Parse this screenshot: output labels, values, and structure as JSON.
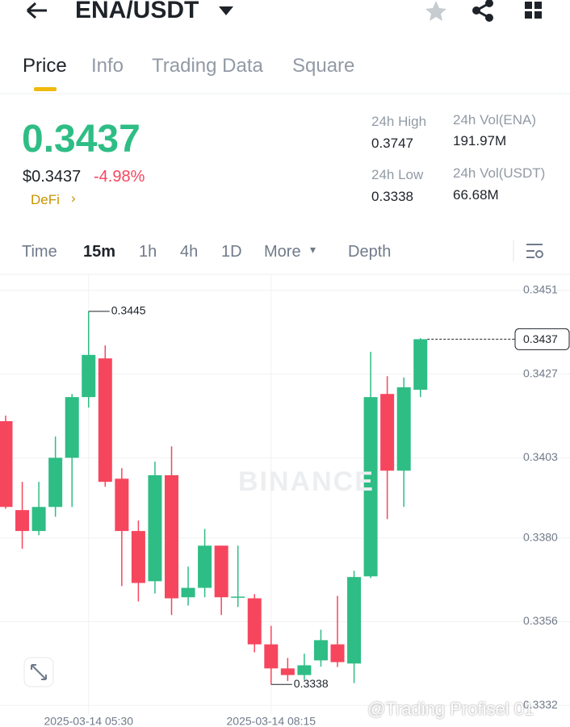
{
  "header": {
    "pair": "ENA/USDT",
    "tabs": [
      "Price",
      "Info",
      "Trading Data",
      "Square"
    ]
  },
  "summary": {
    "price": "0.3437",
    "fiat_price": "$0.3437",
    "change": "-4.98%",
    "tag": "DeFi",
    "stats": [
      {
        "label": "24h High",
        "value": "0.3747"
      },
      {
        "label": "24h Vol(ENA)",
        "value": "191.97M"
      },
      {
        "label": "24h Low",
        "value": "0.3338"
      },
      {
        "label": "24h Vol(USDT)",
        "value": "66.68M"
      }
    ]
  },
  "intervals": [
    "Time",
    "15m",
    "1h",
    "4h",
    "1D",
    "More",
    "Depth"
  ],
  "watermarks": [
    "BINANCE",
    "@Trading Profisel 01"
  ],
  "chart_data": {
    "type": "candlestick",
    "up_color": "#2ebd85",
    "down_color": "#f6465d",
    "categories": [
      null,
      null,
      null,
      null,
      null,
      "2025-03-14 05:30",
      null,
      null,
      null,
      null,
      null,
      null,
      null,
      null,
      null,
      null,
      "2025-03-14 08:15",
      null,
      null,
      null,
      null,
      null,
      null,
      null,
      null,
      null
    ],
    "open": [
      0.34135,
      0.3388,
      0.3382,
      0.33889,
      0.3403,
      0.34204,
      0.34315,
      0.3397,
      0.3382,
      0.33676,
      0.3398,
      0.3363,
      0.33657,
      0.33778,
      0.3363,
      0.33627,
      0.33495,
      0.33426,
      0.33407,
      0.33449,
      0.33495,
      0.3344,
      0.3369,
      0.34213,
      0.33993,
      0.34225
    ],
    "high": [
      0.34151,
      0.33961,
      0.33961,
      0.34091,
      0.34213,
      0.3445,
      0.34352,
      0.34,
      0.3385,
      0.34019,
      0.34063,
      0.33718,
      0.33826,
      0.33778,
      0.33778,
      0.33639,
      0.33548,
      0.33456,
      0.33468,
      0.33537,
      0.33634,
      0.33706,
      0.34334,
      0.34264,
      0.3426,
      0.34373
    ],
    "low": [
      0.33884,
      0.33769,
      0.33808,
      0.33861,
      0.33889,
      0.34174,
      0.33947,
      0.33662,
      0.33618,
      0.33641,
      0.33579,
      0.33606,
      0.3363,
      0.33579,
      0.33602,
      0.33472,
      0.3338,
      0.3339,
      0.33393,
      0.33431,
      0.3343,
      0.33384,
      0.33685,
      0.33854,
      0.33889,
      0.34204
    ],
    "close": [
      0.33889,
      0.3382,
      0.33889,
      0.3403,
      0.34204,
      0.34325,
      0.33961,
      0.3382,
      0.33671,
      0.3398,
      0.33627,
      0.33657,
      0.33778,
      0.3363,
      0.33632,
      0.33495,
      0.33426,
      0.33407,
      0.33435,
      0.33507,
      0.33444,
      0.33688,
      0.34204,
      0.33993,
      0.34232,
      0.3437
    ],
    "ylim": [
      0.33295,
      0.34556
    ],
    "yticks": [
      0.3451,
      0.3427,
      0.3403,
      {
        "value": 0.338,
        "label": "0.3380"
      },
      0.3356,
      0.3332
    ]
  }
}
